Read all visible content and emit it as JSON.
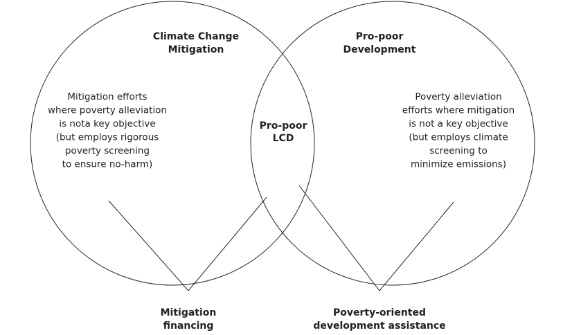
{
  "sets": [
    {
      "label": [
        "Climate Change",
        "Mitigation"
      ],
      "description": [
        "Mitigation efforts",
        "where poverty alleviation",
        "is nota key objective",
        "(but employs rigorous",
        "poverty screening",
        "to ensure no-harm)"
      ]
    },
    {
      "label": [
        "Pro-poor",
        "Development"
      ],
      "description": [
        "Poverty alleviation",
        "efforts where mitigation",
        "is not a key objective",
        "(but employs climate",
        "screening to",
        "minimize emissions)"
      ]
    }
  ],
  "intersection": {
    "label": [
      "Pro-poor",
      "LCD"
    ]
  },
  "callouts": [
    {
      "label": [
        "Mitigation",
        "financing"
      ]
    },
    {
      "label": [
        "Poverty-oriented",
        "development assistance"
      ]
    }
  ]
}
